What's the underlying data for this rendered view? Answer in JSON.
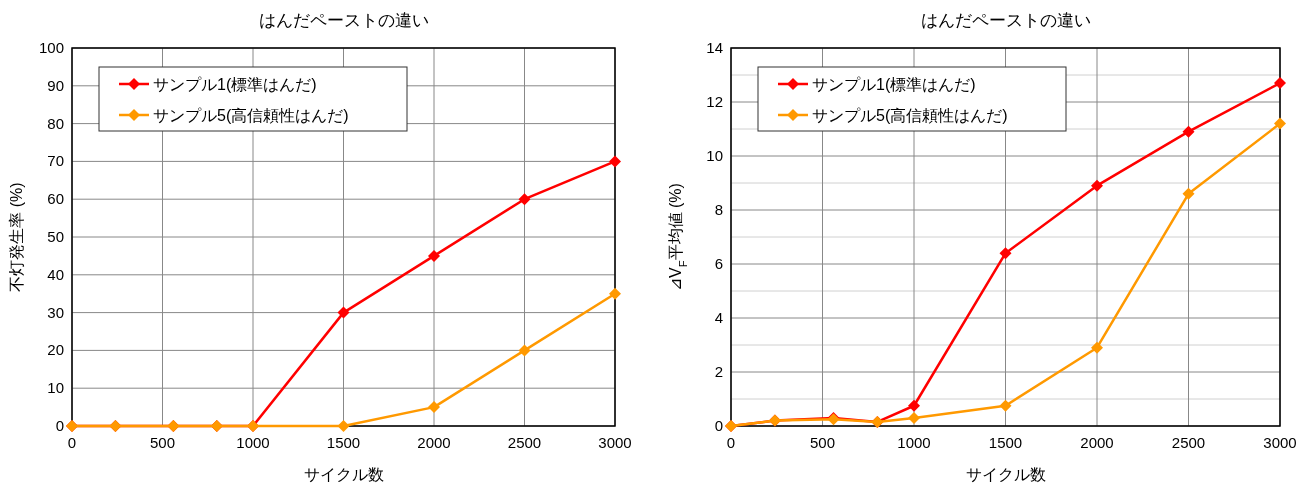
{
  "chart_data": [
    {
      "type": "line",
      "title": "はんだペーストの違い",
      "xlabel": "サイクル数",
      "ylabel": "不灯発生率 (%)",
      "x": [
        0,
        240,
        560,
        800,
        1000,
        1500,
        2000,
        2500,
        3000
      ],
      "series": [
        {
          "name": "サンプル1(標準はんだ)",
          "color": "#ff0000",
          "values": [
            0,
            0,
            0,
            0,
            0,
            30,
            45,
            60,
            70
          ]
        },
        {
          "name": "サンプル5(高信頼性はんだ)",
          "color": "#ff9900",
          "values": [
            0,
            0,
            0,
            0,
            0,
            0,
            5,
            20,
            35
          ]
        }
      ],
      "xlim": [
        0,
        3000
      ],
      "xticks": [
        0,
        500,
        1000,
        1500,
        2000,
        2500,
        3000
      ],
      "ylim": [
        0,
        100
      ],
      "yticks": [
        0,
        10,
        20,
        30,
        40,
        50,
        60,
        70,
        80,
        90,
        100
      ],
      "grid": true,
      "legend": "top left",
      "marker": "diamond",
      "line_style": "solid"
    },
    {
      "type": "line",
      "title": "はんだペーストの違い",
      "xlabel": "サイクル数",
      "ylabel": "⊿V$_{F}$平均値 (%)",
      "x": [
        0,
        240,
        560,
        800,
        1000,
        1500,
        2000,
        2500,
        3000
      ],
      "series": [
        {
          "name": "サンプル1(標準はんだ)",
          "color": "#ff0000",
          "values": [
            0,
            0.2,
            0.3,
            0.15,
            0.75,
            6.4,
            8.9,
            10.9,
            12.7
          ]
        },
        {
          "name": "サンプル5(高信頼性はんだ)",
          "color": "#ff9900",
          "values": [
            0,
            0.2,
            0.25,
            0.15,
            0.3,
            0.75,
            2.9,
            8.6,
            11.2
          ]
        }
      ],
      "xlim": [
        0,
        3000
      ],
      "xticks": [
        0,
        500,
        1000,
        1500,
        2000,
        2500,
        3000
      ],
      "ylim": [
        0,
        14
      ],
      "yticks": [
        0,
        {
          "value": 1,
          "label": null
        },
        2,
        {
          "value": 3,
          "label": null
        },
        4,
        {
          "value": 5,
          "label": null
        },
        6,
        {
          "value": 7,
          "label": null
        },
        8,
        {
          "value": 9,
          "label": null
        },
        10,
        {
          "value": 11,
          "label": null
        },
        12,
        {
          "value": 13,
          "label": null
        },
        14
      ],
      "grid": true,
      "legend": "top left",
      "marker": "diamond",
      "line_style": "solid"
    }
  ]
}
